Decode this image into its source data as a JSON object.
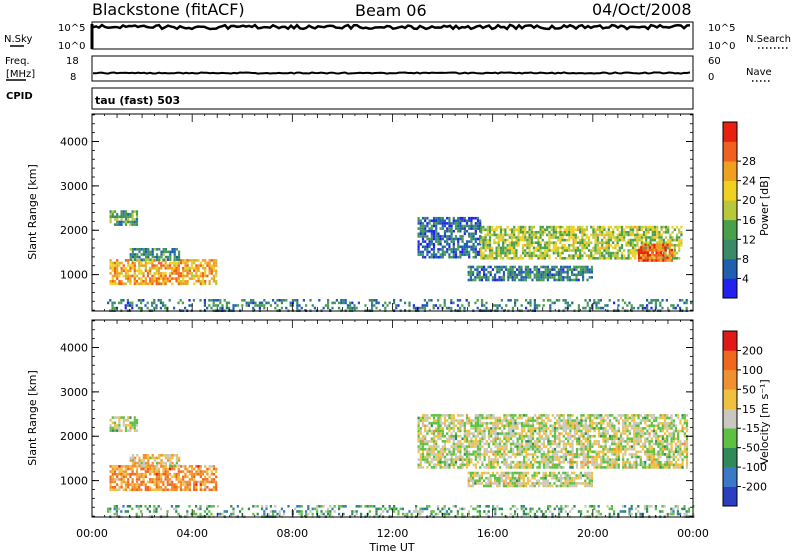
{
  "header": {
    "title": "Blackstone (fitACF)",
    "beam": "Beam 06",
    "date": "04/Oct/2008"
  },
  "panels": {
    "nsky_label": "N.Sky",
    "nsearch_label": "N.Search",
    "freq_label_top": "Freq.",
    "freq_label_unit": "[MHz]",
    "nave_label": "Nave",
    "cpid_label": "CPID",
    "cpid_value": "tau (fast) 503",
    "noise_ticks_left": [
      "10^5",
      "10^0"
    ],
    "noise_ticks_right": [
      "10^5",
      "10^0"
    ],
    "freq_ticks": [
      "18",
      "8"
    ],
    "nave_ticks": [
      "60",
      "0"
    ]
  },
  "colors": {
    "power_scale": [
      "#2222ee",
      "#1f5fb0",
      "#3a8a6a",
      "#4aa04a",
      "#b8c83a",
      "#f0d020",
      "#f0a020",
      "#f06020",
      "#e82010"
    ],
    "velocity_scale": [
      "#2a40c0",
      "#3a78c8",
      "#2f8a5a",
      "#5cc040",
      "#c8c8c0",
      "#f0c040",
      "#f09030",
      "#f06820",
      "#e01818"
    ]
  },
  "chart_data": [
    {
      "type": "heatmap",
      "name": "power",
      "xlabel": "Time UT",
      "ylabel": "Slant Range [km]",
      "x_ticks": [
        "00:00",
        "04:00",
        "08:00",
        "12:00",
        "16:00",
        "20:00",
        "00:00"
      ],
      "xlim_hours": [
        0,
        24
      ],
      "y_ticks": [
        1000,
        2000,
        3000,
        4000
      ],
      "ylim_km": [
        180,
        4620
      ],
      "colorbar_label": "Power [dB]",
      "colorbar_ticks": [
        "4",
        "8",
        "12",
        "16",
        "20",
        "24",
        "28"
      ],
      "colorbar_range": [
        0,
        30
      ],
      "regions": [
        {
          "t": [
            0.7,
            1.8
          ],
          "r": [
            2150,
            2450
          ],
          "level": 0.35
        },
        {
          "t": [
            0.7,
            5.0
          ],
          "r": [
            800,
            1350
          ],
          "level": 0.7
        },
        {
          "t": [
            1.5,
            3.5
          ],
          "r": [
            1350,
            1600
          ],
          "level": 0.3
        },
        {
          "t": [
            0.6,
            24.0
          ],
          "r": [
            200,
            450
          ],
          "level": 0.25
        },
        {
          "t": [
            13.0,
            15.5
          ],
          "r": [
            1400,
            2300
          ],
          "level": 0.2
        },
        {
          "t": [
            15.5,
            23.5
          ],
          "r": [
            1350,
            2100
          ],
          "level": 0.5
        },
        {
          "t": [
            15.0,
            20.0
          ],
          "r": [
            850,
            1200
          ],
          "level": 0.25
        },
        {
          "t": [
            21.8,
            23.2
          ],
          "r": [
            1300,
            1700
          ],
          "level": 0.85
        }
      ]
    },
    {
      "type": "heatmap",
      "name": "velocity",
      "xlabel": "Time UT",
      "ylabel": "Slant Range [km]",
      "x_ticks": [
        "00:00",
        "04:00",
        "08:00",
        "12:00",
        "16:00",
        "20:00",
        "00:00"
      ],
      "xlim_hours": [
        0,
        24
      ],
      "y_ticks": [
        1000,
        2000,
        3000,
        4000
      ],
      "ylim_km": [
        180,
        4620
      ],
      "colorbar_label": "Velocity [m s⁻¹]",
      "colorbar_ticks": [
        "200",
        "100",
        "50",
        "15",
        "-15",
        "-50",
        "-100",
        "-200"
      ],
      "colorbar_range": [
        -250,
        250
      ],
      "regions": [
        {
          "t": [
            0.7,
            1.8
          ],
          "r": [
            2150,
            2450
          ],
          "level": 0.5
        },
        {
          "t": [
            0.7,
            5.0
          ],
          "r": [
            800,
            1350
          ],
          "level": 0.72
        },
        {
          "t": [
            1.5,
            3.5
          ],
          "r": [
            1350,
            1600
          ],
          "level": 0.6
        },
        {
          "t": [
            0.6,
            24.0
          ],
          "r": [
            200,
            450
          ],
          "level": 0.35
        },
        {
          "t": [
            13.0,
            23.8
          ],
          "r": [
            1300,
            2500
          ],
          "level": 0.5
        },
        {
          "t": [
            15.0,
            20.0
          ],
          "r": [
            850,
            1200
          ],
          "level": 0.5
        }
      ]
    }
  ]
}
